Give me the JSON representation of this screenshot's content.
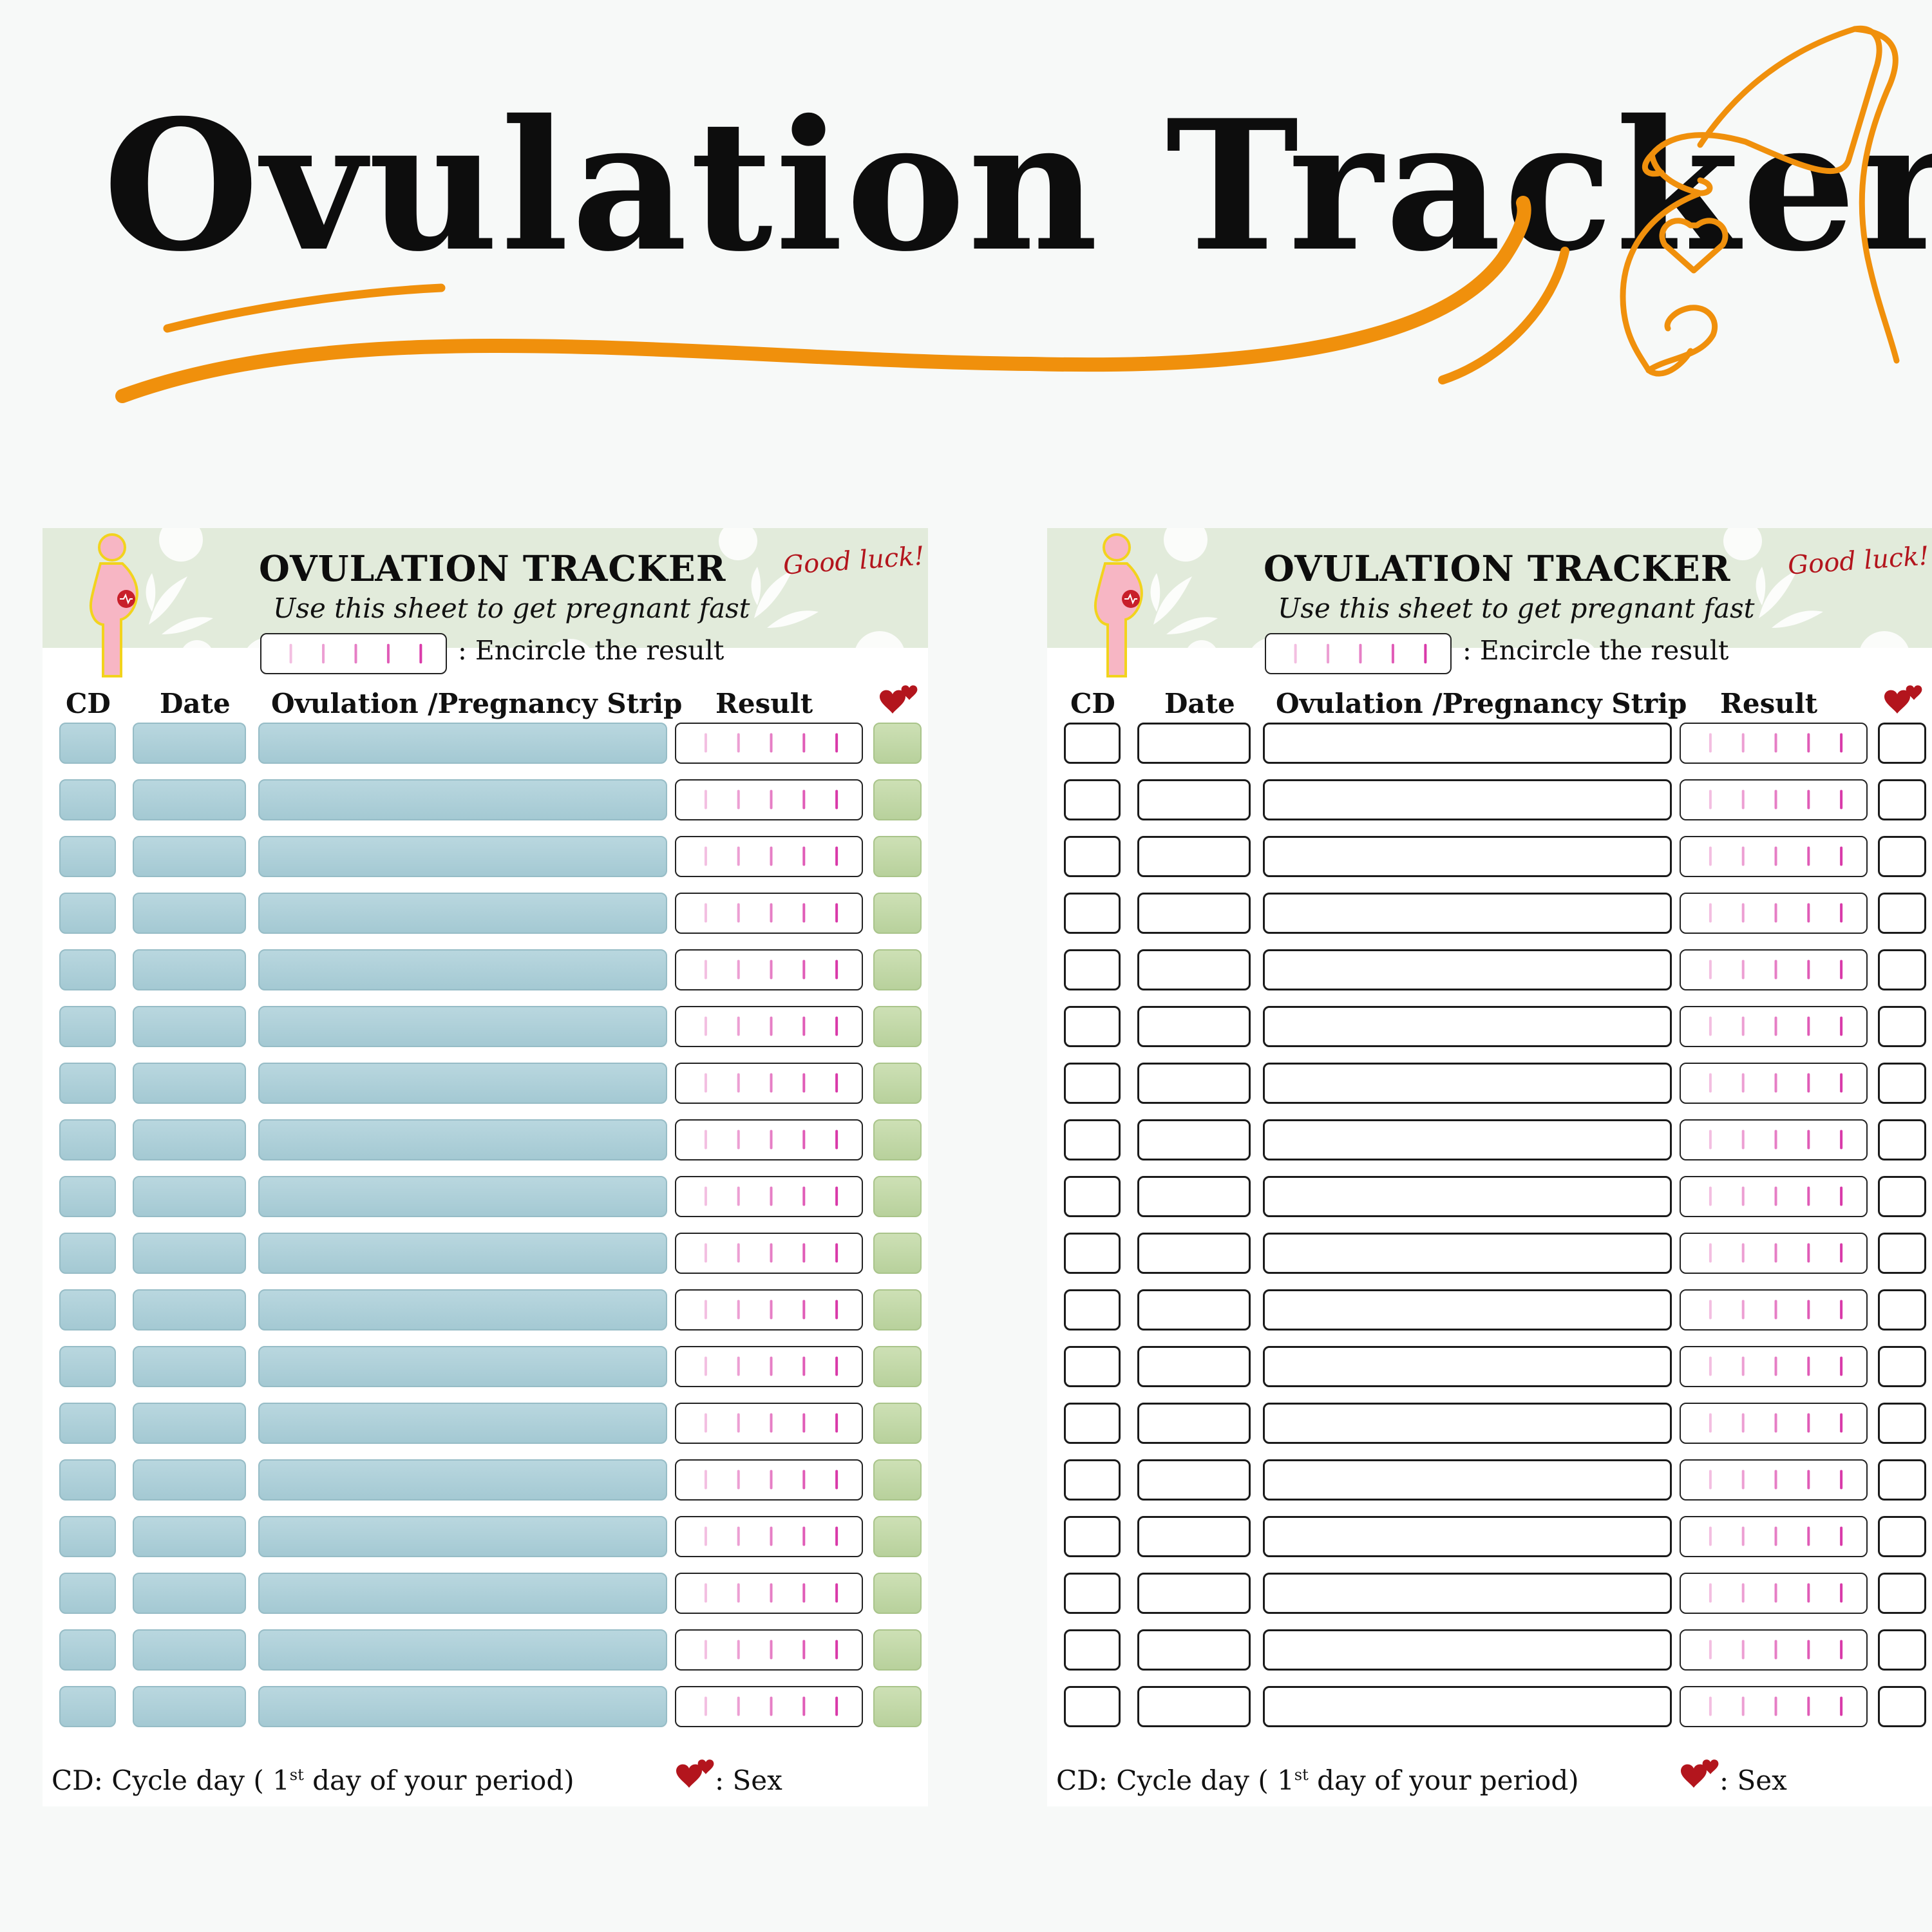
{
  "title": "Ovulation Tracker",
  "colors": {
    "accent": "#f0900c",
    "title": "#0d0d0d",
    "header_band": "#e2ebdb",
    "cell_blue": "#b0d0d9",
    "cell_green": "#c3d9a8",
    "heart": "#b3151d",
    "strip_line": "#e04fb0"
  },
  "sheets": [
    {
      "variant": "color",
      "title": "OVULATION TRACKER",
      "subtitle": "Use this sheet to get pregnant fast",
      "good_luck": "Good luck!",
      "legend": ":  Encircle the result",
      "columns": {
        "cd": "CD",
        "date": "Date",
        "strip": "Ovulation /Pregnancy Strip",
        "result": "Result",
        "sex_icon": "hearts-icon"
      },
      "rows": 18,
      "footer": {
        "cd_prefix": "CD: Cycle day ( 1",
        "cd_sup": "st",
        "cd_suffix": " day of  your period)",
        "sex": ": Sex"
      }
    },
    {
      "variant": "bw",
      "title": "OVULATION TRACKER",
      "subtitle": "Use this sheet to get pregnant fast",
      "good_luck": "Good luck!",
      "legend": ":  Encircle the result",
      "columns": {
        "cd": "CD",
        "date": "Date",
        "strip": "Ovulation /Pregnancy Strip",
        "result": "Result",
        "sex_icon": "hearts-icon"
      },
      "rows": 18,
      "footer": {
        "cd_prefix": "CD: Cycle day ( 1",
        "cd_sup": "st",
        "cd_suffix": " day of  your period)",
        "sex": ": Sex"
      }
    }
  ]
}
